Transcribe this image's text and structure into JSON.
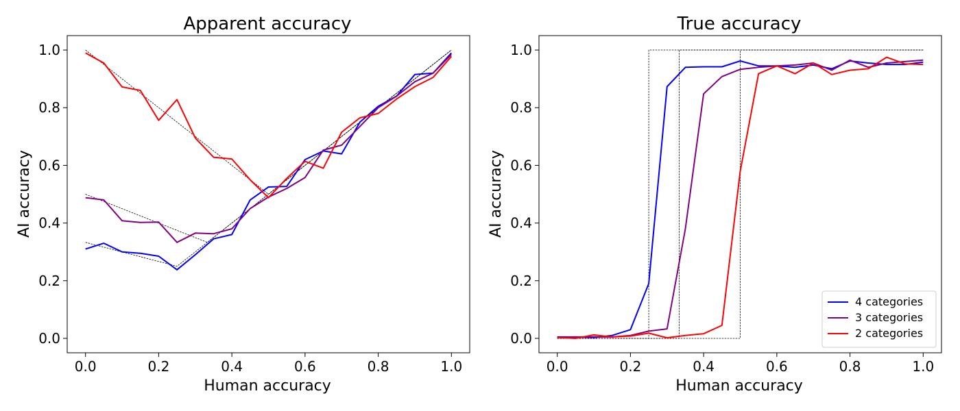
{
  "chart_data": [
    {
      "type": "line",
      "title": "Apparent accuracy",
      "xlabel": "Human accuracy",
      "ylabel": "AI accuracy",
      "xlim": [
        -0.05,
        1.05
      ],
      "ylim": [
        -0.05,
        1.05
      ],
      "xticks": [
        0.0,
        0.2,
        0.4,
        0.6,
        0.8,
        1.0
      ],
      "yticks": [
        0.0,
        0.2,
        0.4,
        0.6,
        0.8,
        1.0
      ],
      "tick_labels_x": [
        "0.0",
        "0.2",
        "0.4",
        "0.6",
        "0.8",
        "1.0"
      ],
      "tick_labels_y": [
        "0.0",
        "0.2",
        "0.4",
        "0.6",
        "0.8",
        "1.0"
      ],
      "grid": false,
      "x": [
        0.0,
        0.05,
        0.1,
        0.15,
        0.2,
        0.25,
        0.3,
        0.35,
        0.4,
        0.45,
        0.5,
        0.55,
        0.6,
        0.65,
        0.7,
        0.75,
        0.8,
        0.85,
        0.9,
        0.95,
        1.0
      ],
      "series": [
        {
          "color": "#0000ff",
          "values": [
            0.31,
            0.33,
            0.3,
            0.295,
            0.285,
            0.238,
            0.29,
            0.345,
            0.36,
            0.48,
            0.525,
            0.527,
            0.62,
            0.65,
            0.64,
            0.75,
            0.805,
            0.84,
            0.915,
            0.92,
            0.99
          ]
        },
        {
          "color": "#800080",
          "values": [
            0.488,
            0.48,
            0.408,
            0.402,
            0.403,
            0.333,
            0.365,
            0.363,
            0.38,
            0.45,
            0.49,
            0.52,
            0.558,
            0.653,
            0.67,
            0.735,
            0.8,
            0.84,
            0.89,
            0.92,
            0.985
          ]
        },
        {
          "color": "#ff0000",
          "values": [
            0.99,
            0.955,
            0.872,
            0.86,
            0.756,
            0.828,
            0.695,
            0.628,
            0.622,
            0.55,
            0.488,
            0.555,
            0.614,
            0.59,
            0.715,
            0.765,
            0.78,
            0.83,
            0.873,
            0.905,
            0.978
          ]
        }
      ],
      "reference_lines": [
        {
          "x": [
            0.0,
            0.5,
            1.0
          ],
          "y": [
            1.0,
            0.5,
            1.0
          ]
        },
        {
          "x": [
            0.0,
            0.333,
            1.0
          ],
          "y": [
            0.5,
            0.333,
            1.0
          ]
        },
        {
          "x": [
            0.0,
            0.25,
            1.0
          ],
          "y": [
            0.333,
            0.25,
            1.0
          ]
        }
      ]
    },
    {
      "type": "line",
      "title": "True accuracy",
      "xlabel": "Human accuracy",
      "ylabel": "AI accuracy",
      "xlim": [
        -0.05,
        1.05
      ],
      "ylim": [
        -0.05,
        1.05
      ],
      "xticks": [
        0.0,
        0.2,
        0.4,
        0.6,
        0.8,
        1.0
      ],
      "yticks": [
        0.0,
        0.2,
        0.4,
        0.6,
        0.8,
        1.0
      ],
      "tick_labels_x": [
        "0.0",
        "0.2",
        "0.4",
        "0.6",
        "0.8",
        "1.0"
      ],
      "tick_labels_y": [
        "0.0",
        "0.2",
        "0.4",
        "0.6",
        "0.8",
        "1.0"
      ],
      "grid": false,
      "legend_position": "bottom-right",
      "x": [
        0.0,
        0.05,
        0.1,
        0.15,
        0.2,
        0.25,
        0.3,
        0.35,
        0.4,
        0.45,
        0.5,
        0.55,
        0.6,
        0.65,
        0.7,
        0.75,
        0.8,
        0.85,
        0.9,
        0.95,
        1.0
      ],
      "series": [
        {
          "name": "4 categories",
          "color": "#0000ff",
          "values": [
            0.005,
            0.005,
            0.003,
            0.01,
            0.03,
            0.19,
            0.873,
            0.94,
            0.942,
            0.942,
            0.962,
            0.945,
            0.945,
            0.94,
            0.948,
            0.935,
            0.962,
            0.955,
            0.95,
            0.95,
            0.958
          ]
        },
        {
          "name": "3 categories",
          "color": "#800080",
          "values": [
            0.003,
            0.005,
            0.005,
            0.005,
            0.01,
            0.025,
            0.033,
            0.38,
            0.848,
            0.908,
            0.933,
            0.94,
            0.945,
            0.948,
            0.955,
            0.93,
            0.965,
            0.94,
            0.955,
            0.96,
            0.965
          ]
        },
        {
          "name": "2 categories",
          "color": "#ff0000",
          "values": [
            0.003,
            0.0,
            0.012,
            0.005,
            0.008,
            0.018,
            0.002,
            0.01,
            0.016,
            0.045,
            0.58,
            0.918,
            0.945,
            0.918,
            0.955,
            0.915,
            0.93,
            0.935,
            0.975,
            0.952,
            0.95
          ]
        }
      ],
      "reference_lines": [
        {
          "x": [
            0.0,
            0.25,
            0.25,
            1.0
          ],
          "y": [
            0.0,
            0.0,
            1.0,
            1.0
          ]
        },
        {
          "x": [
            0.0,
            0.333,
            0.333,
            1.0
          ],
          "y": [
            0.0,
            0.0,
            1.0,
            1.0
          ]
        },
        {
          "x": [
            0.0,
            0.5,
            0.5,
            1.0
          ],
          "y": [
            0.0,
            0.0,
            1.0,
            1.0
          ]
        }
      ]
    }
  ]
}
